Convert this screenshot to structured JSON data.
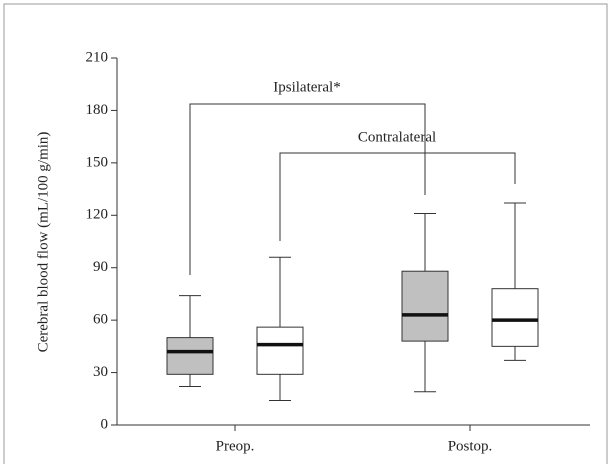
{
  "chart_data": {
    "type": "box",
    "ylabel": "Cerebral blood flow (mL/100 g/min)",
    "categories": [
      "Preop.",
      "Postop."
    ],
    "ylim": [
      0,
      210
    ],
    "yticks": [
      0,
      30,
      60,
      90,
      120,
      150,
      180,
      210
    ],
    "series": [
      {
        "color": "#c0c0c0",
        "values": [
          {
            "min": 22,
            "q1": 29,
            "median": 42,
            "q3": 50,
            "max": 74
          },
          {
            "min": 19,
            "q1": 48,
            "median": 63,
            "q3": 88,
            "max": 121
          }
        ]
      },
      {
        "color": "#ffffff",
        "values": [
          {
            "min": 14,
            "q1": 29,
            "median": 46,
            "q3": 56,
            "max": 96
          },
          {
            "min": 37,
            "q1": 45,
            "median": 60,
            "q3": 78,
            "max": 127
          }
        ]
      }
    ],
    "annotations": [
      "Ipsilateral*",
      "Contralateral"
    ]
  }
}
